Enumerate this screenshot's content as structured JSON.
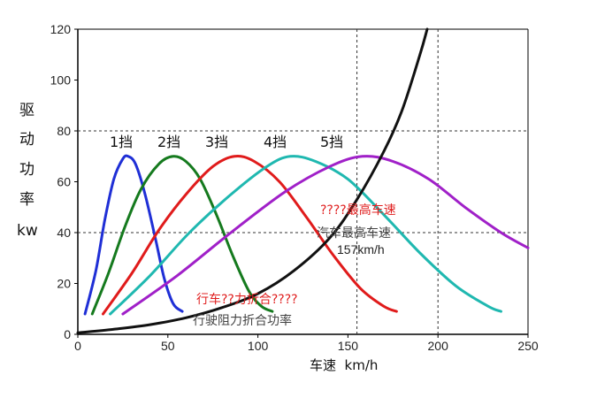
{
  "chart_data": {
    "type": "line",
    "xlabel": "车速  km/h",
    "ylabel": [
      "驱",
      "动",
      "功",
      "率",
      "kw"
    ],
    "xlim": [
      0,
      250
    ],
    "ylim": [
      0,
      120
    ],
    "x_ticks": [
      0,
      50,
      100,
      150,
      200,
      250
    ],
    "y_ticks": [
      0,
      20,
      40,
      60,
      80,
      100,
      120
    ],
    "grid": "dashed reference lines at y=40, y=80, x=155, x=200",
    "series": [
      {
        "name": "1挡",
        "color": "#1f2fd6",
        "x": [
          4,
          10,
          15,
          20,
          25,
          28,
          32,
          37,
          43,
          48,
          53,
          58
        ],
        "y": [
          8,
          25,
          45,
          61,
          69,
          70,
          67,
          56,
          38,
          22,
          12,
          9
        ]
      },
      {
        "name": "2挡",
        "color": "#157a1e",
        "x": [
          8,
          17,
          26,
          35,
          45,
          53,
          60,
          68,
          77,
          86,
          95,
          102,
          108
        ],
        "y": [
          8,
          24,
          42,
          57,
          67,
          70,
          68,
          61,
          47,
          31,
          17,
          11,
          9
        ]
      },
      {
        "name": "3挡",
        "color": "#e01b1b",
        "x": [
          14,
          30,
          45,
          60,
          75,
          87,
          98,
          112,
          127,
          142,
          157,
          170,
          177
        ],
        "y": [
          8,
          24,
          41,
          55,
          66,
          70,
          68,
          60,
          46,
          31,
          18,
          11,
          9
        ]
      },
      {
        "name": "4挡",
        "color": "#1fb8b0",
        "x": [
          18,
          40,
          62,
          85,
          105,
          118,
          132,
          150,
          170,
          190,
          210,
          228,
          235
        ],
        "y": [
          8,
          23,
          40,
          55,
          66,
          70,
          68,
          61,
          47,
          32,
          19,
          11,
          9
        ]
      },
      {
        "name": "5挡",
        "color": "#a020c8",
        "x": [
          25,
          55,
          85,
          115,
          140,
          158,
          175,
          195,
          215,
          235,
          250
        ],
        "y": [
          8,
          23,
          40,
          56,
          66,
          70,
          68,
          61,
          50,
          40,
          34
        ]
      },
      {
        "name": "resistance",
        "color": "#111111",
        "x": [
          0,
          20,
          40,
          60,
          80,
          100,
          120,
          140,
          155,
          170,
          180,
          190,
          194
        ],
        "y": [
          0.6,
          2,
          3.8,
          6.5,
          10.5,
          16,
          25,
          38,
          53,
          72,
          88,
          110,
          120
        ]
      }
    ],
    "gear_labels": [
      "1挡",
      "2挡",
      "3挡",
      "4挡",
      "5挡"
    ],
    "annotations": {
      "max_speed_red": "????最高车速",
      "max_speed_grey": "汽车最高车速",
      "max_speed_value": "157km/h",
      "resistance_red": "行车??力折合????",
      "resistance_grey": "行驶阻力折合功率"
    },
    "reference_lines": {
      "y": [
        40,
        80
      ],
      "x": [
        155,
        200
      ]
    }
  }
}
